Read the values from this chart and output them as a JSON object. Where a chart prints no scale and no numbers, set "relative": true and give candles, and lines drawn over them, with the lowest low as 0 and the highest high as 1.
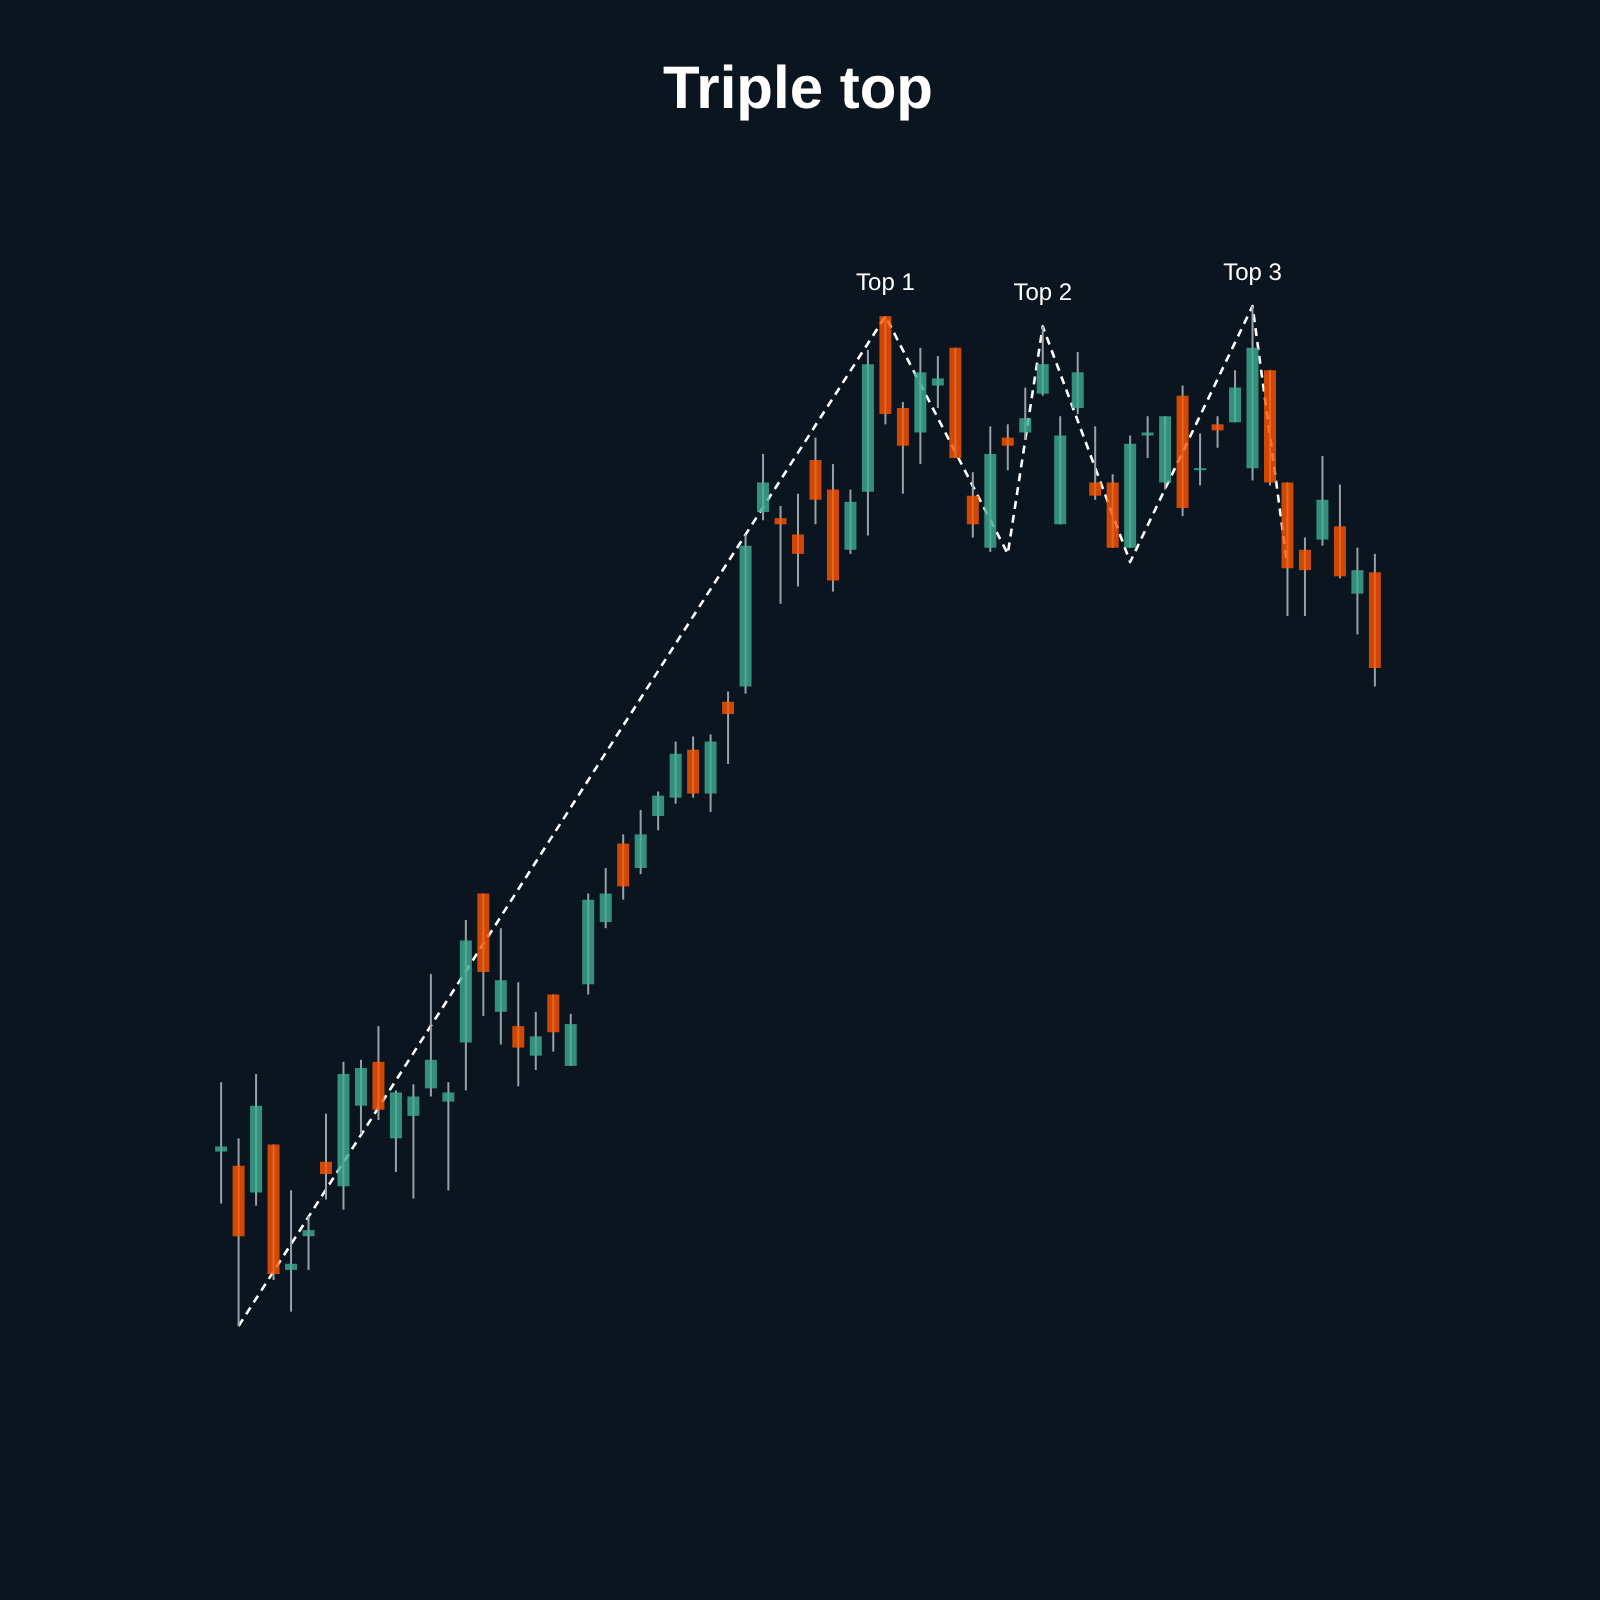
{
  "chart_data": {
    "type": "candlestick",
    "title": "Triple top",
    "relative": true,
    "categories": [
      null,
      null,
      null,
      null,
      null,
      null,
      null,
      null,
      null,
      null,
      null,
      null,
      null,
      null,
      null,
      null,
      null,
      null,
      null,
      null,
      null,
      null,
      null,
      null,
      null,
      null,
      null,
      null,
      null,
      null,
      null,
      null,
      null,
      null,
      null,
      null,
      null,
      null,
      null,
      null,
      null,
      null,
      null,
      null,
      null,
      null,
      null,
      null,
      null,
      null,
      null,
      null,
      null,
      null,
      null,
      null,
      null,
      null,
      null,
      null,
      null,
      null,
      null,
      null,
      null,
      null,
      null
    ],
    "annotations": [
      "Top 1",
      "Top 2",
      "Top 3"
    ],
    "series": [
      {
        "type": "line",
        "color": "#ffffff",
        "line_style": "dashed",
        "values": [
          null,
          0,
          null,
          null,
          null,
          null,
          null,
          null,
          null,
          null,
          null,
          null,
          null,
          null,
          null,
          null,
          null,
          null,
          null,
          null,
          null,
          null,
          null,
          null,
          null,
          null,
          null,
          null,
          null,
          null,
          null,
          null,
          null,
          null,
          null,
          null,
          null,
          null,
          0.99,
          null,
          null,
          null,
          null,
          null,
          null,
          0.757,
          null,
          0.98,
          null,
          null,
          null,
          null,
          0.749,
          null,
          null,
          null,
          null,
          null,
          null,
          1,
          null,
          0.745,
          null,
          null,
          null,
          null,
          null
        ]
      },
      {
        "colors": [
          "#3fae94",
          "#ff5500",
          "#3fae94",
          "#ff5500",
          "#3fae94",
          "#3fae94",
          "#ff5500",
          "#3fae94",
          "#3fae94",
          "#ff5500",
          "#3fae94",
          "#3fae94",
          "#3fae94",
          "#3fae94",
          "#3fae94",
          "#ff5500",
          "#3fae94",
          "#ff5500",
          "#3fae94",
          "#ff5500",
          "#3fae94",
          "#3fae94",
          "#3fae94",
          "#ff5500",
          "#3fae94",
          "#3fae94",
          "#3fae94",
          "#ff5500",
          "#3fae94",
          "#ff5500",
          "#3fae94",
          "#3fae94",
          "#ff5500",
          "#ff5500",
          "#ff5500",
          "#ff5500",
          "#3fae94",
          "#3fae94",
          "#ff5500",
          "#ff5500",
          "#3fae94",
          "#3fae94",
          "#ff5500",
          "#ff5500",
          "#3fae94",
          "#ff5500",
          "#3fae94",
          "#3fae94",
          "#3fae94",
          "#3fae94",
          "#ff5500",
          "#ff5500",
          "#3fae94",
          "#3fae94",
          "#3fae94",
          "#ff5500",
          "#3fae94",
          "#ff5500",
          "#3fae94",
          "#3fae94",
          "#ff5500",
          "#ff5500",
          "#ff5500",
          "#3fae94",
          "#ff5500",
          "#3fae94",
          "#ff5500"
        ],
        "ohlc": [
          [
            0.171,
            0.239,
            0.12,
            0.176
          ],
          [
            0.157,
            0.184,
            0,
            0.088
          ],
          [
            0.131,
            0.247,
            0.118,
            0.216
          ],
          [
            0.178,
            0.178,
            0.045,
            0.051
          ],
          [
            0.055,
            0.133,
            0.014,
            0.061
          ],
          [
            0.088,
            0.108,
            0.055,
            0.094
          ],
          [
            0.161,
            0.208,
            0.124,
            0.149
          ],
          [
            0.137,
            0.259,
            0.114,
            0.247
          ],
          [
            0.216,
            0.261,
            0.188,
            0.253
          ],
          [
            0.259,
            0.294,
            0.202,
            0.212
          ],
          [
            0.184,
            0.231,
            0.151,
            0.229
          ],
          [
            0.206,
            0.237,
            0.125,
            0.225
          ],
          [
            0.233,
            0.345,
            0.225,
            0.261
          ],
          [
            0.22,
            0.239,
            0.133,
            0.229
          ],
          [
            0.278,
            0.398,
            0.231,
            0.378
          ],
          [
            0.424,
            0.424,
            0.304,
            0.347
          ],
          [
            0.308,
            0.39,
            0.276,
            0.339
          ],
          [
            0.294,
            0.337,
            0.235,
            0.273
          ],
          [
            0.265,
            0.308,
            0.251,
            0.284
          ],
          [
            0.325,
            0.325,
            0.269,
            0.288
          ],
          [
            0.255,
            0.306,
            0.255,
            0.296
          ],
          [
            0.335,
            0.424,
            0.325,
            0.418
          ],
          [
            0.396,
            0.449,
            0.39,
            0.424
          ],
          [
            0.473,
            0.482,
            0.418,
            0.431
          ],
          [
            0.449,
            0.506,
            0.443,
            0.482
          ],
          [
            0.5,
            0.524,
            0.486,
            0.52
          ],
          [
            0.518,
            0.573,
            0.512,
            0.561
          ],
          [
            0.565,
            0.578,
            0.518,
            0.522
          ],
          [
            0.522,
            0.58,
            0.504,
            0.573
          ],
          [
            0.612,
            0.622,
            0.551,
            0.6
          ],
          [
            0.627,
            0.776,
            0.62,
            0.765
          ],
          [
            0.798,
            0.855,
            0.79,
            0.827
          ],
          [
            0.792,
            0.804,
            0.708,
            0.786
          ],
          [
            0.776,
            0.816,
            0.725,
            0.757
          ],
          [
            0.849,
            0.871,
            0.786,
            0.81
          ],
          [
            0.82,
            0.845,
            0.72,
            0.731
          ],
          [
            0.761,
            0.82,
            0.757,
            0.808
          ],
          [
            0.818,
            0.957,
            0.775,
            0.943
          ],
          [
            0.99,
            0.99,
            0.884,
            0.894
          ],
          [
            0.9,
            0.906,
            0.816,
            0.863
          ],
          [
            0.876,
            0.959,
            0.845,
            0.935
          ],
          [
            0.922,
            0.951,
            0.9,
            0.929
          ],
          [
            0.959,
            0.959,
            0.851,
            0.851
          ],
          [
            0.814,
            0.837,
            0.773,
            0.786
          ],
          [
            0.763,
            0.882,
            0.759,
            0.855
          ],
          [
            0.871,
            0.884,
            0.839,
            0.863
          ],
          [
            0.876,
            0.92,
            0.869,
            0.89
          ],
          [
            0.914,
            0.98,
            0.912,
            0.943
          ],
          [
            0.786,
            0.892,
            0.786,
            0.873
          ],
          [
            0.9,
            0.955,
            0.894,
            0.935
          ],
          [
            0.827,
            0.882,
            0.81,
            0.814
          ],
          [
            0.827,
            0.835,
            0.763,
            0.763
          ],
          [
            0.763,
            0.873,
            0.763,
            0.865
          ],
          [
            0.873,
            0.892,
            0.851,
            0.876
          ],
          [
            0.827,
            0.892,
            0.82,
            0.892
          ],
          [
            0.912,
            0.922,
            0.794,
            0.802
          ],
          [
            0.839,
            0.875,
            0.824,
            0.841
          ],
          [
            0.884,
            0.892,
            0.861,
            0.878
          ],
          [
            0.886,
            0.937,
            0.886,
            0.92
          ],
          [
            0.841,
            1,
            0.829,
            0.959
          ],
          [
            0.937,
            0.937,
            0.824,
            0.827
          ],
          [
            0.827,
            0.827,
            0.696,
            0.743
          ],
          [
            0.761,
            0.773,
            0.696,
            0.741
          ],
          [
            0.771,
            0.853,
            0.765,
            0.81
          ],
          [
            0.784,
            0.825,
            0.733,
            0.735
          ],
          [
            0.718,
            0.763,
            0.678,
            0.741
          ],
          [
            0.739,
            0.757,
            0.627,
            0.645
          ]
        ]
      }
    ]
  }
}
